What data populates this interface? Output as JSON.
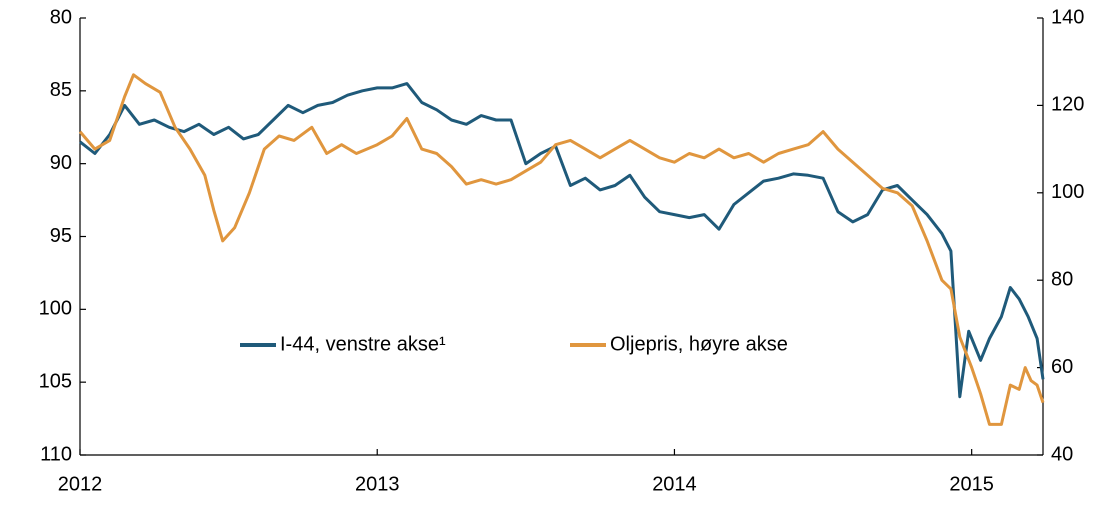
{
  "chart_data": {
    "type": "line",
    "xlim": [
      2012,
      2015.24
    ],
    "xticks": [
      2012,
      2013,
      2014,
      2015
    ],
    "ylim": [
      110,
      80
    ],
    "yticks": [
      80,
      85,
      90,
      95,
      100,
      105,
      110
    ],
    "y2lim": [
      40,
      140
    ],
    "y2ticks": [
      40,
      60,
      80,
      100,
      120,
      140
    ],
    "series": [
      {
        "name": "I-44, venstre akse¹",
        "color": "#1f5a7a",
        "x": [
          2012.0,
          2012.05,
          2012.1,
          2012.15,
          2012.2,
          2012.25,
          2012.3,
          2012.35,
          2012.4,
          2012.45,
          2012.5,
          2012.55,
          2012.6,
          2012.65,
          2012.7,
          2012.75,
          2012.8,
          2012.85,
          2012.9,
          2012.95,
          2013.0,
          2013.05,
          2013.1,
          2013.15,
          2013.2,
          2013.25,
          2013.3,
          2013.35,
          2013.4,
          2013.45,
          2013.5,
          2013.55,
          2013.6,
          2013.65,
          2013.7,
          2013.75,
          2013.8,
          2013.85,
          2013.9,
          2013.95,
          2014.0,
          2014.05,
          2014.1,
          2014.15,
          2014.2,
          2014.25,
          2014.3,
          2014.35,
          2014.4,
          2014.45,
          2014.5,
          2014.55,
          2014.6,
          2014.65,
          2014.7,
          2014.75,
          2014.8,
          2014.85,
          2014.9,
          2014.93,
          2014.96,
          2014.99,
          2015.03,
          2015.06,
          2015.1,
          2015.13,
          2015.16,
          2015.19,
          2015.22,
          2015.24
        ],
        "values": [
          88.5,
          89.3,
          88.0,
          86.0,
          87.3,
          87.0,
          87.5,
          87.8,
          87.3,
          88.0,
          87.5,
          88.3,
          88.0,
          87.0,
          86.0,
          86.5,
          86.0,
          85.8,
          85.3,
          85.0,
          84.8,
          84.8,
          84.5,
          85.8,
          86.3,
          87.0,
          87.3,
          86.7,
          87.0,
          87.0,
          90.0,
          89.3,
          88.8,
          91.5,
          91.0,
          91.8,
          91.5,
          90.8,
          92.3,
          93.3,
          93.5,
          93.7,
          93.5,
          94.5,
          92.8,
          92.0,
          91.2,
          91.0,
          90.7,
          90.8,
          91.0,
          93.3,
          94.0,
          93.5,
          91.8,
          91.5,
          92.5,
          93.5,
          94.8,
          96.0,
          106.0,
          101.5,
          103.5,
          102.0,
          100.5,
          98.5,
          99.3,
          100.5,
          102.0,
          104.8
        ]
      },
      {
        "name": "Oljepris, høyre akse",
        "color": "#e0963e",
        "axis": "y2",
        "x": [
          2012.0,
          2012.05,
          2012.1,
          2012.15,
          2012.18,
          2012.22,
          2012.27,
          2012.32,
          2012.37,
          2012.42,
          2012.45,
          2012.48,
          2012.52,
          2012.57,
          2012.62,
          2012.67,
          2012.72,
          2012.78,
          2012.83,
          2012.88,
          2012.93,
          2013.0,
          2013.05,
          2013.1,
          2013.15,
          2013.2,
          2013.25,
          2013.3,
          2013.35,
          2013.4,
          2013.45,
          2013.5,
          2013.55,
          2013.6,
          2013.65,
          2013.7,
          2013.75,
          2013.8,
          2013.85,
          2013.9,
          2013.95,
          2014.0,
          2014.05,
          2014.1,
          2014.15,
          2014.2,
          2014.25,
          2014.3,
          2014.35,
          2014.4,
          2014.45,
          2014.5,
          2014.55,
          2014.6,
          2014.65,
          2014.7,
          2014.75,
          2014.8,
          2014.85,
          2014.9,
          2014.93,
          2014.96,
          2015.0,
          2015.03,
          2015.06,
          2015.1,
          2015.13,
          2015.16,
          2015.18,
          2015.2,
          2015.22,
          2015.24
        ],
        "values": [
          114,
          110,
          112,
          122,
          127,
          125,
          123,
          115,
          110,
          104,
          96,
          89,
          92,
          100,
          110,
          113,
          112,
          115,
          109,
          111,
          109,
          111,
          113,
          117,
          110,
          109,
          106,
          102,
          103,
          102,
          103,
          105,
          107,
          111,
          112,
          110,
          108,
          110,
          112,
          110,
          108,
          107,
          109,
          108,
          110,
          108,
          109,
          107,
          109,
          110,
          111,
          114,
          110,
          107,
          104,
          101,
          100,
          97,
          89,
          80,
          78,
          67,
          60,
          54,
          47,
          47,
          56,
          55,
          60,
          57,
          56,
          52
        ]
      }
    ]
  }
}
